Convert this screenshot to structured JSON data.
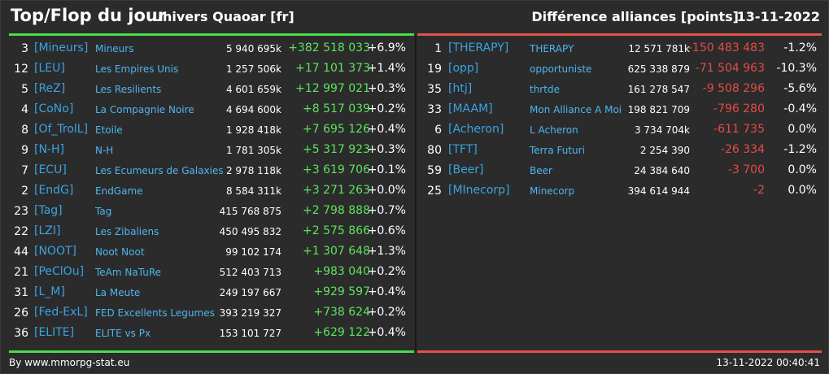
{
  "header": {
    "title": "Top/Flop du jour",
    "subtitle": "Univers Quaoar [fr]",
    "right_title": "Différence alliances [points]",
    "date": "13-11-2022"
  },
  "colors": {
    "top_accent": "#4ade4a",
    "flop_accent": "#e0534b",
    "tag": "#3aa3e3",
    "name": "#4fb5ef",
    "background": "#2b2b2b"
  },
  "top": [
    {
      "rank": "3",
      "tag": "[Mineurs]",
      "name": "Mineurs",
      "points": "5 940 695k",
      "diff": "+382 518 033",
      "pct": "+6.9%"
    },
    {
      "rank": "12",
      "tag": "[LEU]",
      "name": "Les Empires Unis",
      "points": "1 257 506k",
      "diff": "+17 101 373",
      "pct": "+1.4%"
    },
    {
      "rank": "5",
      "tag": "[ReZ]",
      "name": "Les Resilients",
      "points": "4 601 659k",
      "diff": "+12 997 021",
      "pct": "+0.3%"
    },
    {
      "rank": "4",
      "tag": "[CoNo]",
      "name": "La Compagnie Noire",
      "points": "4 694 600k",
      "diff": "+8 517 039",
      "pct": "+0.2%"
    },
    {
      "rank": "8",
      "tag": "[Of_TrolL]",
      "name": "Etoile",
      "points": "1 928 418k",
      "diff": "+7 695 126",
      "pct": "+0.4%"
    },
    {
      "rank": "9",
      "tag": "[N-H]",
      "name": "N-H",
      "points": "1 781 305k",
      "diff": "+5 317 923",
      "pct": "+0.3%"
    },
    {
      "rank": "7",
      "tag": "[ECU]",
      "name": "Les Ecumeurs de Galaxies",
      "points": "2 978 118k",
      "diff": "+3 619 706",
      "pct": "+0.1%"
    },
    {
      "rank": "2",
      "tag": "[EndG]",
      "name": "EndGame",
      "points": "8 584 311k",
      "diff": "+3 271 263",
      "pct": "+0.0%"
    },
    {
      "rank": "23",
      "tag": "[Tag]",
      "name": "Tag",
      "points": "415 768 875",
      "diff": "+2 798 888",
      "pct": "+0.7%"
    },
    {
      "rank": "22",
      "tag": "[LZI]",
      "name": "Les Zibaliens",
      "points": "450 495 832",
      "diff": "+2 575 866",
      "pct": "+0.6%"
    },
    {
      "rank": "44",
      "tag": "[NOOT]",
      "name": "Noot Noot",
      "points": "99 102 174",
      "diff": "+1 307 648",
      "pct": "+1.3%"
    },
    {
      "rank": "21",
      "tag": "[PeClOu]",
      "name": "TeAm NaTuRe",
      "points": "512 403 713",
      "diff": "+983 040",
      "pct": "+0.2%"
    },
    {
      "rank": "31",
      "tag": "[L_M]",
      "name": "La Meute",
      "points": "249 197 667",
      "diff": "+929 597",
      "pct": "+0.4%"
    },
    {
      "rank": "26",
      "tag": "[Fed-ExL]",
      "name": "FED Excellents Legumes",
      "points": "393 219 327",
      "diff": "+738 624",
      "pct": "+0.2%"
    },
    {
      "rank": "36",
      "tag": "[ELITE]",
      "name": "ELITE vs Px",
      "points": "153 101 727",
      "diff": "+629 122",
      "pct": "+0.4%"
    }
  ],
  "flop": [
    {
      "rank": "1",
      "tag": "[THERAPY]",
      "name": "THERAPY",
      "points": "12 571 781k",
      "diff": "-150 483 483",
      "pct": "-1.2%"
    },
    {
      "rank": "19",
      "tag": "[opp]",
      "name": "opportuniste",
      "points": "625 338 879",
      "diff": "-71 504 963",
      "pct": "-10.3%"
    },
    {
      "rank": "35",
      "tag": "[htj]",
      "name": "thrtde",
      "points": "161 278 547",
      "diff": "-9 508 296",
      "pct": "-5.6%"
    },
    {
      "rank": "33",
      "tag": "[MAAM]",
      "name": "Mon Alliance A Moi",
      "points": "198 821 709",
      "diff": "-796 280",
      "pct": "-0.4%"
    },
    {
      "rank": "6",
      "tag": "[Acheron]",
      "name": "L Acheron",
      "points": "3 734 704k",
      "diff": "-611 735",
      "pct": "0.0%"
    },
    {
      "rank": "80",
      "tag": "[TFT]",
      "name": "Terra Futuri",
      "points": "2 254 390",
      "diff": "-26 334",
      "pct": "-1.2%"
    },
    {
      "rank": "59",
      "tag": "[Beer]",
      "name": "Beer",
      "points": "24 384 640",
      "diff": "-3 700",
      "pct": "0.0%"
    },
    {
      "rank": "25",
      "tag": "[MInecorp]",
      "name": "Minecorp",
      "points": "394 614 944",
      "diff": "-2",
      "pct": "0.0%"
    }
  ],
  "footer": {
    "credit": "By www.mmorpg-stat.eu",
    "timestamp": "13-11-2022 00:40:41"
  }
}
